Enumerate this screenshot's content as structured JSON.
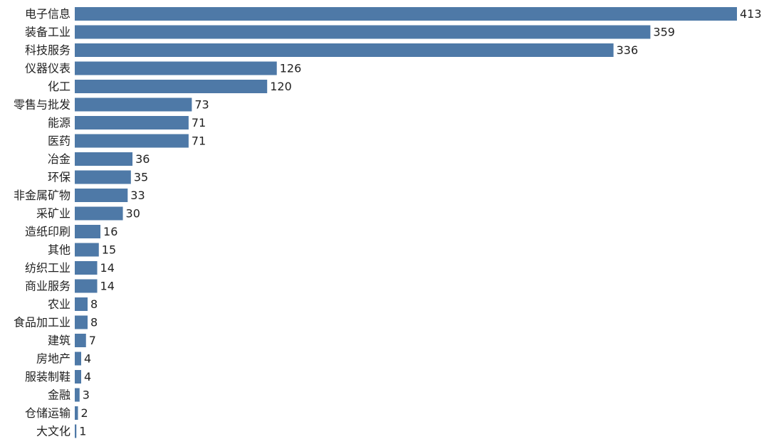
{
  "chart_data": {
    "type": "bar",
    "orientation": "horizontal",
    "title": "",
    "xlabel": "",
    "ylabel": "",
    "xlim": [
      0,
      413
    ],
    "grid": false,
    "legend": "none",
    "bar_color": "#4e79a7",
    "categories": [
      "电子信息",
      "装备工业",
      "科技服务",
      "仪器仪表",
      "化工",
      "零售与批发",
      "能源",
      "医药",
      "冶金",
      "环保",
      "非金属矿物",
      "采矿业",
      "造纸印刷",
      "其他",
      "纺织工业",
      "商业服务",
      "农业",
      "食品加工业",
      "建筑",
      "房地产",
      "服装制鞋",
      "金融",
      "仓储运输",
      "大文化"
    ],
    "values": [
      413,
      359,
      336,
      126,
      120,
      73,
      71,
      71,
      36,
      35,
      33,
      30,
      16,
      15,
      14,
      14,
      8,
      8,
      7,
      4,
      4,
      3,
      2,
      1
    ]
  }
}
